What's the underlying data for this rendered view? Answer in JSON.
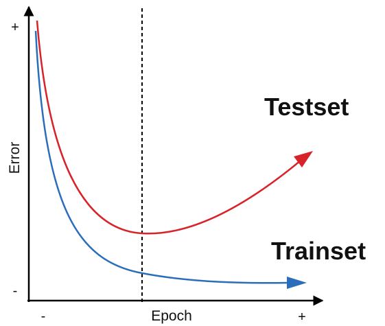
{
  "y_axis": {
    "label": "Error",
    "top": "+",
    "bottom": "-"
  },
  "x_axis": {
    "label": "Epoch",
    "left": "-",
    "right": "+"
  },
  "curves": [
    {
      "label": "Testset"
    },
    {
      "label": "Trainset"
    }
  ]
}
